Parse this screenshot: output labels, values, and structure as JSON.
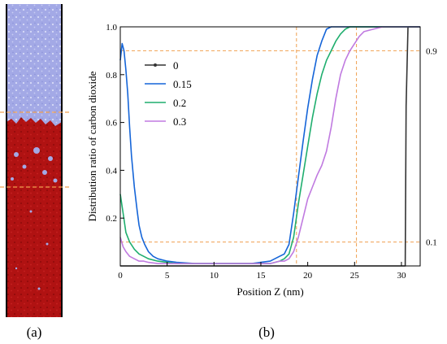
{
  "panels": {
    "a_label": "(a)",
    "b_label": "(b)"
  },
  "snapshot": {
    "top_color": "#9fa6e3",
    "bottom_color": "#b21010",
    "guide_color": "#f0a050"
  },
  "chart_data": {
    "type": "line",
    "xlabel": "Position Z (nm)",
    "ylabel": "Distribution ratio of carbon dioxide",
    "xlim": [
      0,
      32
    ],
    "ylim": [
      0,
      1.0
    ],
    "x_ticks": [
      "0",
      "5",
      "10",
      "15",
      "20",
      "25",
      "30"
    ],
    "y_ticks": [
      "0.2",
      "0.4",
      "0.6",
      "0.8",
      "1.0"
    ],
    "right_labels": [
      "0.9",
      "0.1"
    ],
    "reference_lines": {
      "horizontal": [
        0.9,
        0.1
      ],
      "vertical": [
        18.8,
        25.2
      ],
      "color": "#f0a050"
    },
    "legend_position": "top-left",
    "series": [
      {
        "name": "0",
        "color": "#333333",
        "x": [
          0,
          30.4,
          30.5,
          30.7,
          32
        ],
        "y": [
          0,
          0,
          0.67,
          1.0,
          1.0
        ]
      },
      {
        "name": "0.15",
        "color": "#1565d8",
        "x": [
          0,
          0.2,
          0.4,
          0.6,
          0.8,
          1.0,
          1.2,
          1.5,
          1.8,
          2.0,
          2.3,
          2.6,
          3.0,
          3.5,
          4.0,
          5,
          6,
          8,
          10,
          12,
          14,
          16,
          17,
          17.5,
          18,
          18.5,
          19,
          19.5,
          20,
          20.5,
          21,
          21.5,
          22,
          22.5,
          23,
          24,
          25,
          28,
          32
        ],
        "y": [
          0.86,
          0.93,
          0.9,
          0.82,
          0.72,
          0.58,
          0.46,
          0.33,
          0.23,
          0.17,
          0.12,
          0.09,
          0.06,
          0.04,
          0.03,
          0.02,
          0.015,
          0.01,
          0.01,
          0.01,
          0.01,
          0.02,
          0.04,
          0.05,
          0.09,
          0.22,
          0.37,
          0.52,
          0.66,
          0.78,
          0.88,
          0.94,
          0.99,
          1.0,
          1.0,
          1.0,
          1.0,
          1.0,
          1.0
        ]
      },
      {
        "name": "0.2",
        "color": "#1fae6e",
        "x": [
          0,
          0.3,
          0.6,
          1.0,
          1.5,
          2.0,
          2.5,
          3,
          4,
          5,
          6,
          8,
          10,
          12,
          14,
          16,
          17,
          17.5,
          18,
          18.5,
          19,
          19.5,
          20,
          20.5,
          21,
          21.5,
          22,
          22.5,
          23,
          23.5,
          24,
          24.5,
          25,
          28,
          32
        ],
        "y": [
          0.3,
          0.22,
          0.14,
          0.1,
          0.07,
          0.05,
          0.04,
          0.03,
          0.02,
          0.015,
          0.01,
          0.01,
          0.01,
          0.01,
          0.01,
          0.01,
          0.02,
          0.03,
          0.05,
          0.12,
          0.26,
          0.38,
          0.5,
          0.62,
          0.72,
          0.8,
          0.86,
          0.9,
          0.94,
          0.97,
          0.99,
          1.0,
          1.0,
          1.0,
          1.0
        ]
      },
      {
        "name": "0.3",
        "color": "#c07ae0",
        "x": [
          0,
          0.3,
          0.6,
          1.0,
          1.5,
          2.0,
          2.5,
          3,
          4,
          5,
          6,
          8,
          10,
          12,
          14,
          16,
          17,
          17.5,
          18,
          18.5,
          19,
          19.5,
          20,
          20.5,
          21,
          21.5,
          22,
          22.5,
          23,
          23.5,
          24,
          24.5,
          25,
          25.5,
          26,
          27,
          28,
          32
        ],
        "y": [
          0.12,
          0.08,
          0.06,
          0.04,
          0.03,
          0.02,
          0.02,
          0.015,
          0.01,
          0.01,
          0.01,
          0.01,
          0.01,
          0.01,
          0.01,
          0.01,
          0.02,
          0.02,
          0.03,
          0.06,
          0.12,
          0.2,
          0.28,
          0.33,
          0.38,
          0.42,
          0.48,
          0.58,
          0.7,
          0.8,
          0.86,
          0.9,
          0.93,
          0.96,
          0.98,
          0.99,
          1.0,
          1.0
        ]
      }
    ]
  }
}
